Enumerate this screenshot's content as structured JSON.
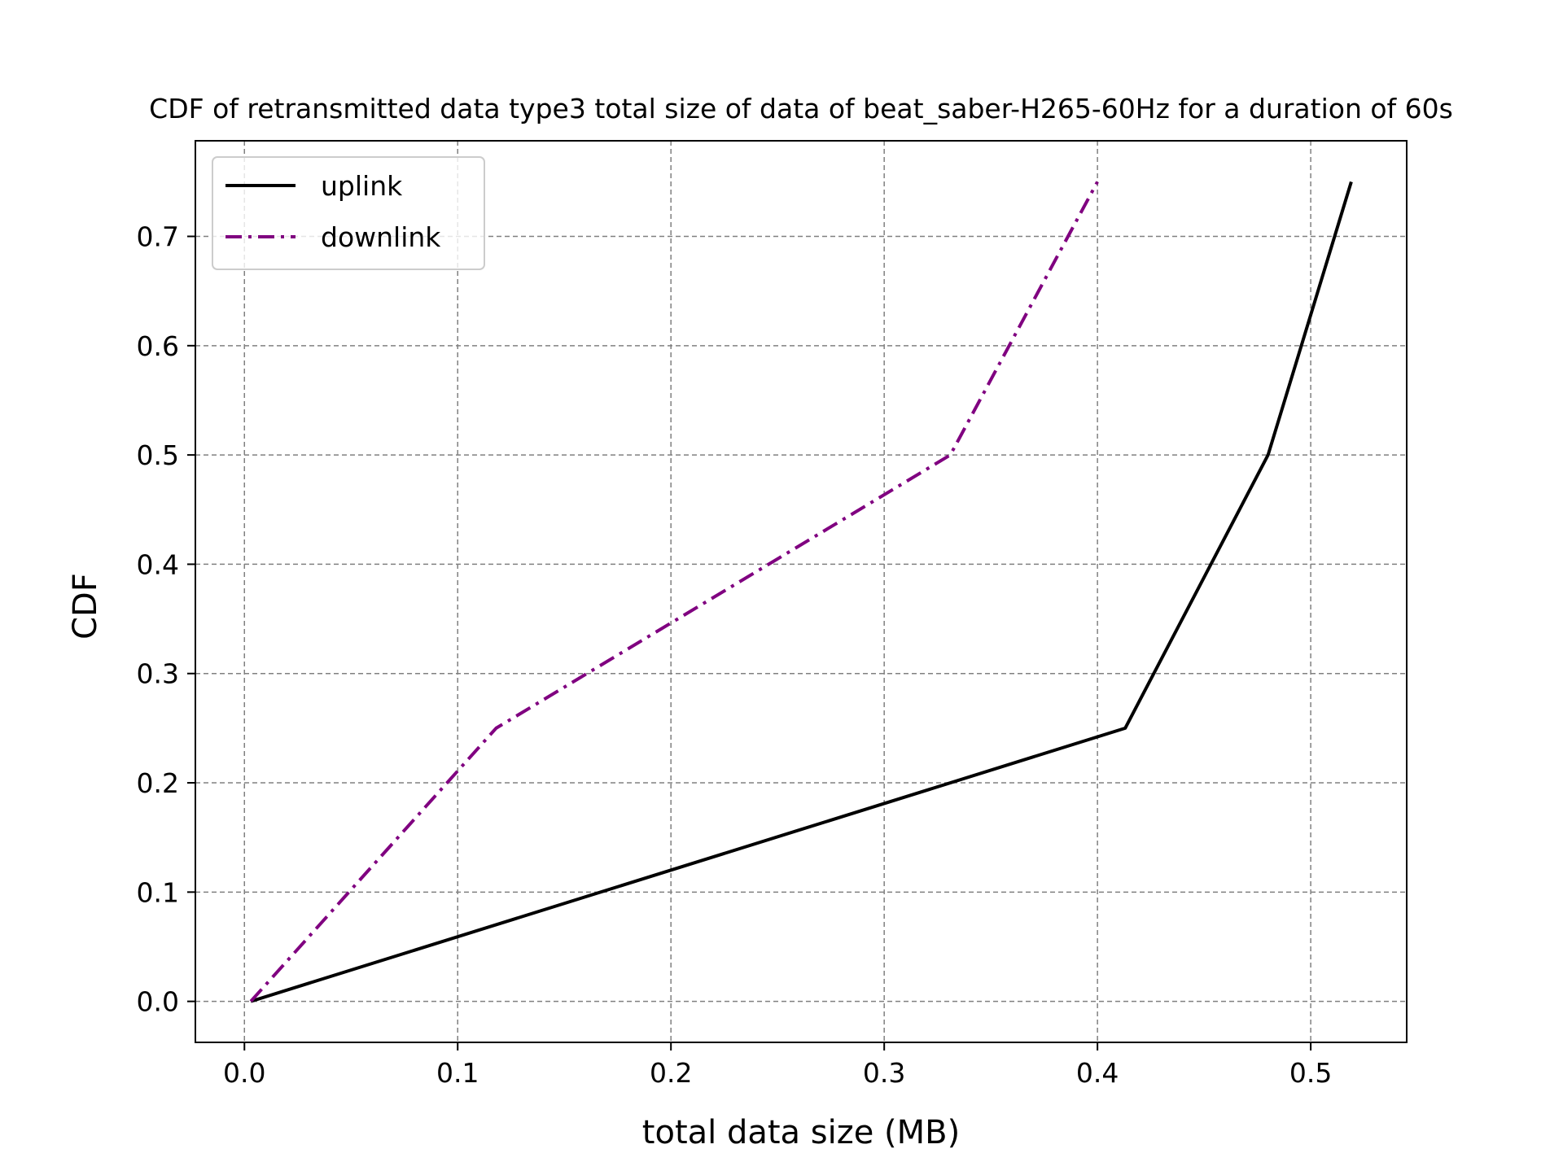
{
  "chart_data": {
    "type": "line",
    "title": "CDF of retransmitted data type3 total size of data of beat_saber-H265-60Hz for a duration of 60s",
    "xlabel": "total data size (MB)",
    "ylabel": "CDF",
    "xlim": [
      -0.023,
      0.545
    ],
    "ylim": [
      -0.0375,
      0.7875
    ],
    "x_ticks": [
      0.0,
      0.1,
      0.2,
      0.3,
      0.4,
      0.5
    ],
    "x_tick_labels": [
      "0.0",
      "0.1",
      "0.2",
      "0.3",
      "0.4",
      "0.5"
    ],
    "y_ticks": [
      0.0,
      0.1,
      0.2,
      0.3,
      0.4,
      0.5,
      0.6,
      0.7
    ],
    "y_tick_labels": [
      "0.0",
      "0.1",
      "0.2",
      "0.3",
      "0.4",
      "0.5",
      "0.6",
      "0.7"
    ],
    "grid": true,
    "legend_position": "upper left",
    "series": [
      {
        "name": "uplink",
        "color": "#000000",
        "line_style": "solid",
        "points": [
          [
            0.003,
            0.0
          ],
          [
            0.413,
            0.25
          ],
          [
            0.48,
            0.5
          ],
          [
            0.519,
            0.75
          ]
        ]
      },
      {
        "name": "downlink",
        "color": "#800080",
        "line_style": "dashdot",
        "points": [
          [
            0.003,
            0.0
          ],
          [
            0.118,
            0.25
          ],
          [
            0.331,
            0.5
          ],
          [
            0.4,
            0.75
          ]
        ]
      }
    ]
  }
}
